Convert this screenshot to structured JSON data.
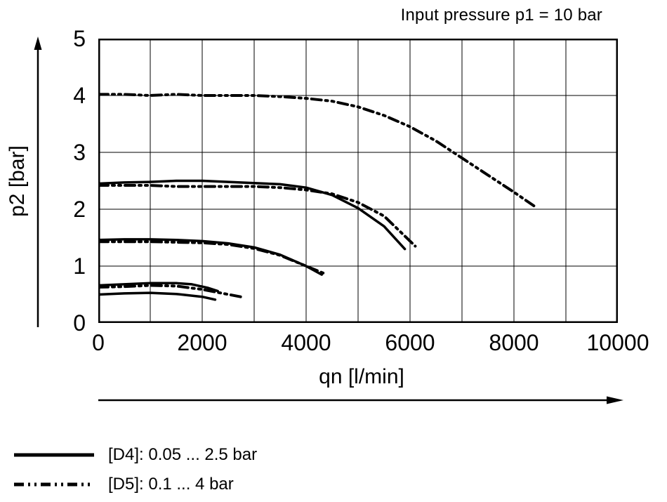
{
  "title": "Input pressure p1 = 10 bar",
  "colors": {
    "line": "#000000",
    "background": "#ffffff"
  },
  "axes": {
    "x": {
      "label": "qn [l/min]",
      "min": 0,
      "max": 10000,
      "grid_step": 1000,
      "ticks": [
        0,
        2000,
        4000,
        6000,
        8000,
        10000
      ]
    },
    "y": {
      "label": "p2 [bar]",
      "min": 0,
      "max": 5,
      "grid_step": 1,
      "ticks": [
        5,
        4,
        3,
        2,
        1,
        0
      ]
    }
  },
  "legend": [
    {
      "id": "d4",
      "style": "solid",
      "label": "[D4]: 0.05 ... 2.5 bar"
    },
    {
      "id": "d5",
      "style": "dashdotdot",
      "label": "[D5]: 0.1 ... 4 bar"
    }
  ],
  "chart_data": {
    "type": "line",
    "title": "Input pressure p1 = 10 bar",
    "xlabel": "qn [l/min]",
    "ylabel": "p2 [bar]",
    "xlim": [
      0,
      10000
    ],
    "ylim": [
      0,
      5
    ],
    "grid": true,
    "legend_position": "bottom-left",
    "series": [
      {
        "id": "d5-4bar",
        "name": "[D5] setpoint 4 bar",
        "style": "dashdotdot",
        "points": [
          [
            0,
            4.02
          ],
          [
            500,
            4.02
          ],
          [
            1000,
            4.0
          ],
          [
            1500,
            4.02
          ],
          [
            2000,
            4.0
          ],
          [
            2500,
            4.0
          ],
          [
            3000,
            4.0
          ],
          [
            3500,
            3.98
          ],
          [
            4000,
            3.95
          ],
          [
            4500,
            3.9
          ],
          [
            5000,
            3.8
          ],
          [
            5500,
            3.65
          ],
          [
            6000,
            3.45
          ],
          [
            6500,
            3.2
          ],
          [
            7000,
            2.9
          ],
          [
            7500,
            2.6
          ],
          [
            8000,
            2.3
          ],
          [
            8400,
            2.05
          ]
        ]
      },
      {
        "id": "d4-2.5bar",
        "name": "[D4] setpoint 2.5 bar",
        "style": "solid",
        "points": [
          [
            0,
            2.45
          ],
          [
            500,
            2.47
          ],
          [
            1000,
            2.48
          ],
          [
            1500,
            2.5
          ],
          [
            2000,
            2.5
          ],
          [
            2500,
            2.48
          ],
          [
            3000,
            2.46
          ],
          [
            3500,
            2.44
          ],
          [
            4000,
            2.38
          ],
          [
            4500,
            2.25
          ],
          [
            5000,
            2.02
          ],
          [
            5500,
            1.7
          ],
          [
            5900,
            1.3
          ]
        ]
      },
      {
        "id": "d5-2.4bar",
        "name": "[D5] setpoint 2.4 bar",
        "style": "dashdotdot",
        "points": [
          [
            0,
            2.42
          ],
          [
            500,
            2.42
          ],
          [
            1000,
            2.42
          ],
          [
            1500,
            2.4
          ],
          [
            2000,
            2.4
          ],
          [
            2500,
            2.4
          ],
          [
            3000,
            2.4
          ],
          [
            3500,
            2.38
          ],
          [
            4000,
            2.34
          ],
          [
            4500,
            2.27
          ],
          [
            5000,
            2.12
          ],
          [
            5500,
            1.88
          ],
          [
            6100,
            1.35
          ]
        ]
      },
      {
        "id": "d4-1.5bar",
        "name": "[D4] setpoint 1.5 bar",
        "style": "solid",
        "points": [
          [
            0,
            1.46
          ],
          [
            500,
            1.47
          ],
          [
            1000,
            1.47
          ],
          [
            1500,
            1.46
          ],
          [
            2000,
            1.44
          ],
          [
            2500,
            1.4
          ],
          [
            3000,
            1.33
          ],
          [
            3500,
            1.2
          ],
          [
            4000,
            1.0
          ],
          [
            4300,
            0.85
          ]
        ]
      },
      {
        "id": "d5-1.4bar",
        "name": "[D5] setpoint 1.4 bar",
        "style": "dashdotdot",
        "points": [
          [
            0,
            1.43
          ],
          [
            500,
            1.43
          ],
          [
            1000,
            1.43
          ],
          [
            1500,
            1.42
          ],
          [
            2000,
            1.41
          ],
          [
            2500,
            1.38
          ],
          [
            3000,
            1.31
          ],
          [
            3500,
            1.19
          ],
          [
            4000,
            1.0
          ],
          [
            4400,
            0.85
          ]
        ]
      },
      {
        "id": "d4-0.7bar",
        "name": "[D4] setpoint 0.7 bar",
        "style": "solid",
        "points": [
          [
            0,
            0.66
          ],
          [
            500,
            0.68
          ],
          [
            1000,
            0.7
          ],
          [
            1500,
            0.7
          ],
          [
            1800,
            0.68
          ],
          [
            2100,
            0.62
          ],
          [
            2300,
            0.56
          ]
        ]
      },
      {
        "id": "d5-0.6bar",
        "name": "[D5] setpoint 0.6 bar",
        "style": "dashdotdot",
        "points": [
          [
            0,
            0.63
          ],
          [
            500,
            0.64
          ],
          [
            1000,
            0.66
          ],
          [
            1500,
            0.65
          ],
          [
            2000,
            0.59
          ],
          [
            2400,
            0.52
          ],
          [
            2800,
            0.45
          ]
        ]
      },
      {
        "id": "d4-0.5bar",
        "name": "[D4] setpoint 0.5 bar",
        "style": "solid",
        "points": [
          [
            0,
            0.5
          ],
          [
            500,
            0.52
          ],
          [
            1000,
            0.53
          ],
          [
            1500,
            0.51
          ],
          [
            2000,
            0.46
          ],
          [
            2250,
            0.41
          ]
        ]
      }
    ]
  }
}
